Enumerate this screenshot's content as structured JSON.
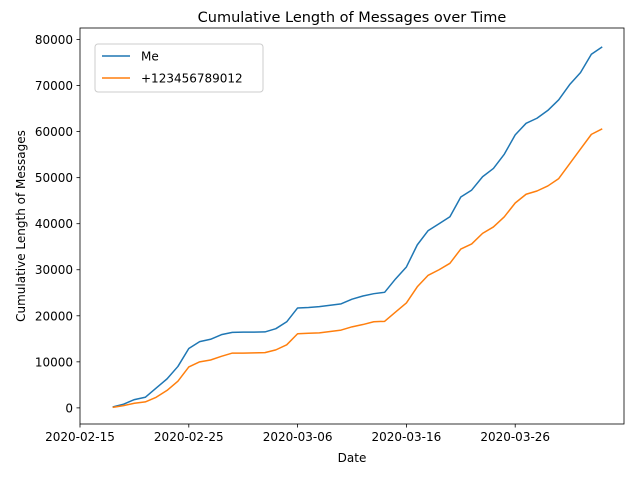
{
  "chart_data": {
    "type": "line",
    "title": "Cumulative Length of Messages over Time",
    "xlabel": "Date",
    "ylabel": "Cumulative Length of Messages",
    "x": [
      "2020-02-18",
      "2020-02-19",
      "2020-02-20",
      "2020-02-21",
      "2020-02-22",
      "2020-02-23",
      "2020-02-24",
      "2020-02-25",
      "2020-02-26",
      "2020-02-27",
      "2020-02-28",
      "2020-02-29",
      "2020-03-01",
      "2020-03-02",
      "2020-03-03",
      "2020-03-04",
      "2020-03-05",
      "2020-03-06",
      "2020-03-07",
      "2020-03-08",
      "2020-03-09",
      "2020-03-10",
      "2020-03-11",
      "2020-03-12",
      "2020-03-13",
      "2020-03-14",
      "2020-03-15",
      "2020-03-16",
      "2020-03-17",
      "2020-03-18",
      "2020-03-19",
      "2020-03-20",
      "2020-03-21",
      "2020-03-22",
      "2020-03-23",
      "2020-03-24",
      "2020-03-25",
      "2020-03-26",
      "2020-03-27",
      "2020-03-28",
      "2020-03-29",
      "2020-03-30",
      "2020-03-31",
      "2020-04-01",
      "2020-04-02",
      "2020-04-03"
    ],
    "series": [
      {
        "name": "Me",
        "color": "#1f77b4",
        "values": [
          200,
          800,
          1800,
          2300,
          4300,
          6300,
          9000,
          12900,
          14400,
          14900,
          15900,
          16400,
          16450,
          16450,
          16500,
          17200,
          18700,
          21700,
          21800,
          22000,
          22300,
          22600,
          23600,
          24300,
          24800,
          25100,
          28000,
          30600,
          35400,
          38500,
          40000,
          41500,
          45800,
          47300,
          50200,
          52000,
          55100,
          59300,
          61800,
          62900,
          64600,
          66900,
          70200,
          72800,
          76800,
          78400
        ]
      },
      {
        "name": "+123456789012",
        "color": "#ff7f0e",
        "values": [
          100,
          500,
          1000,
          1300,
          2300,
          3800,
          5800,
          8900,
          10000,
          10400,
          11200,
          11900,
          11900,
          11950,
          12000,
          12600,
          13700,
          16100,
          16200,
          16300,
          16600,
          16900,
          17600,
          18100,
          18700,
          18800,
          20800,
          22800,
          26300,
          28800,
          30000,
          31400,
          34500,
          35600,
          37900,
          39300,
          41500,
          44500,
          46400,
          47100,
          48200,
          49800,
          53000,
          56200,
          59400,
          60600
        ]
      }
    ],
    "xlim": [
      "2020-02-15",
      "2020-04-05"
    ],
    "ylim": [
      -3500,
      82500
    ],
    "xticks": [
      "2020-02-15",
      "2020-02-25",
      "2020-03-06",
      "2020-03-16",
      "2020-03-26"
    ],
    "yticks": [
      0,
      10000,
      20000,
      30000,
      40000,
      50000,
      60000,
      70000,
      80000
    ],
    "grid": false,
    "legend": "top-left"
  }
}
